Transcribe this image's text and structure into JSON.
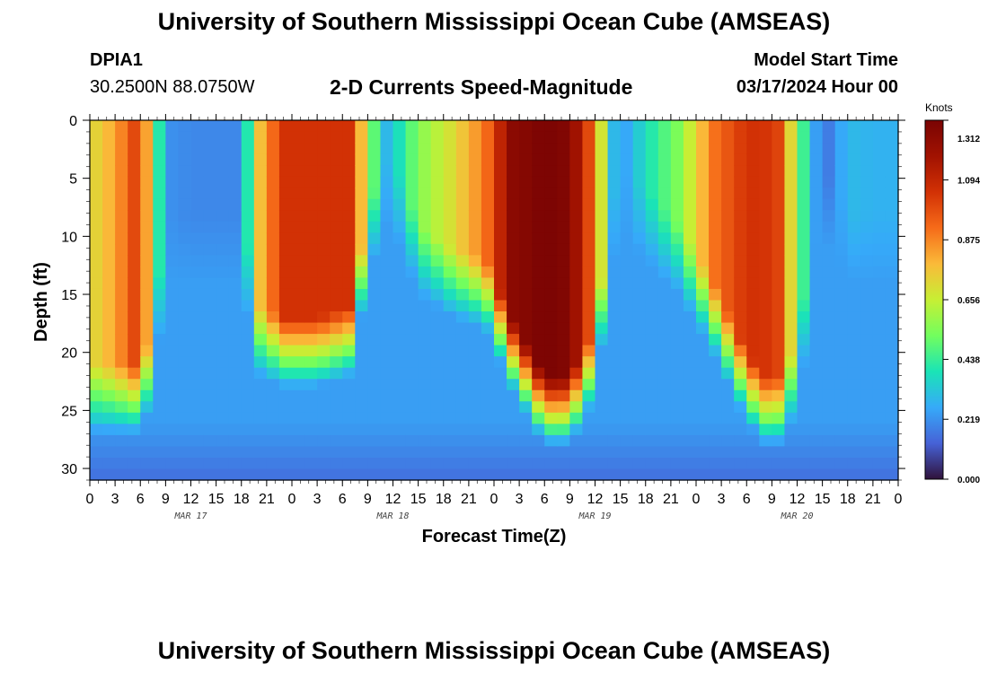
{
  "header": {
    "title": "University of Southern Mississippi Ocean Cube (AMSEAS)",
    "station_id": "DPIA1",
    "station_coords": "30.2500N  88.0750W",
    "subtitle": "2-D Currents Speed-Magnitude",
    "model_start_label": "Model Start Time",
    "model_start_value": "03/17/2024 Hour 00"
  },
  "footer": {
    "title": "University of Southern Mississippi Ocean Cube (AMSEAS)"
  },
  "chart_data": {
    "type": "heatmap",
    "xlabel": "Forecast Time(Z)",
    "ylabel": "Depth (ft)",
    "x_ticks": [
      "0",
      "3",
      "6",
      "9",
      "12",
      "15",
      "18",
      "21",
      "0",
      "3",
      "6",
      "9",
      "12",
      "15",
      "18",
      "21",
      "0",
      "3",
      "6",
      "9",
      "12",
      "15",
      "18",
      "21",
      "0",
      "3",
      "6",
      "9",
      "12",
      "15",
      "18",
      "21",
      "0"
    ],
    "x_range_hours": [
      0,
      96
    ],
    "date_labels": [
      {
        "label": "MAR 17",
        "hour": 12
      },
      {
        "label": "MAR 18",
        "hour": 36
      },
      {
        "label": "MAR 19",
        "hour": 60
      },
      {
        "label": "MAR 20",
        "hour": 84
      }
    ],
    "y_ticks": [
      0,
      5,
      10,
      15,
      20,
      25,
      30
    ],
    "y_range": [
      0,
      31
    ],
    "colorbar": {
      "title": "Knots",
      "min": 0.0,
      "max": 1.312,
      "tick_labels": [
        "1.312",
        "1.094",
        "0.875",
        "0.656",
        "0.438",
        "0.219",
        "0.000"
      ],
      "tick_values": [
        1.312,
        1.094,
        0.875,
        0.656,
        0.438,
        0.219,
        0.0
      ]
    },
    "speed_structure": {
      "time_hours": [
        0,
        3,
        6,
        7.5,
        9,
        12,
        18,
        20,
        23,
        27,
        31,
        33,
        35,
        37,
        39,
        43,
        47,
        50,
        54,
        57,
        60,
        62,
        63,
        66,
        70,
        74,
        78,
        80,
        82,
        84,
        87,
        90,
        93,
        96
      ],
      "surface_speed_knots": [
        0.7,
        0.82,
        1.05,
        0.6,
        0.22,
        0.2,
        0.2,
        0.75,
        1.05,
        1.05,
        1.05,
        0.62,
        0.28,
        0.4,
        0.55,
        0.7,
        0.9,
        1.25,
        1.31,
        1.28,
        0.9,
        0.32,
        0.22,
        0.38,
        0.55,
        0.9,
        1.05,
        1.05,
        1.0,
        0.55,
        0.14,
        0.3,
        0.28,
        0.28
      ],
      "core_depth_ft": [
        21,
        21,
        21,
        18,
        8,
        8,
        8,
        16,
        17,
        17,
        16,
        8,
        3,
        5,
        9,
        11,
        12,
        17,
        22,
        22,
        18,
        7,
        4,
        6,
        9,
        14,
        20,
        22,
        22,
        19,
        4,
        8,
        8,
        8
      ]
    }
  }
}
